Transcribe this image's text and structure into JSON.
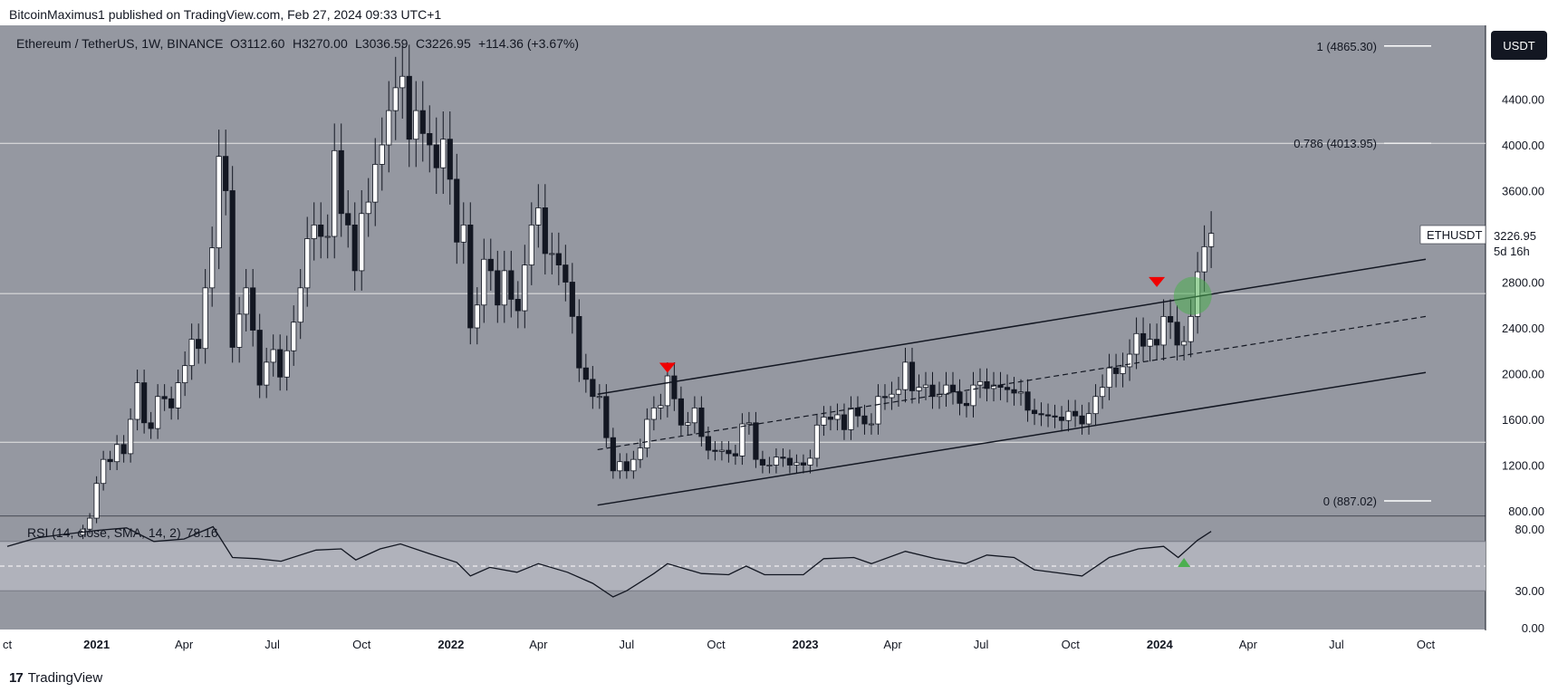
{
  "header": {
    "published": "BitcoinMaximus1 published on TradingView.com, Feb 27, 2024 09:33 UTC+1"
  },
  "footer": {
    "logo": "17",
    "brand": "TradingView"
  },
  "chart_data": {
    "type": "candlestick",
    "title": "Ethereum / TetherUS, 1W, BINANCE",
    "ohlc_legend": {
      "o_label": "O",
      "o": "3112.60",
      "h_label": "H",
      "h": "3270.00",
      "l_label": "L",
      "l": "3036.59",
      "c_label": "C",
      "c": "3226.95",
      "change": "+114.36 (+3.67%)"
    },
    "currency": "USDT",
    "symbol": "ETHUSDT",
    "last_price": 3226.95,
    "last_price_text": "3226.95",
    "countdown": "5d 16h",
    "y_ticks": [
      800,
      1200,
      1600,
      2000,
      2400,
      2800,
      3600,
      4000,
      4400
    ],
    "y_tick_labels": [
      "800.00",
      "1200.00",
      "1600.00",
      "2000.00",
      "2400.00",
      "2800.00",
      "3600.00",
      "4000.00",
      "4400.00"
    ],
    "x_tick_labels": [
      "ct",
      "2021",
      "Apr",
      "Jul",
      "Oct",
      "2022",
      "Apr",
      "Jul",
      "Oct",
      "2023",
      "Apr",
      "Jul",
      "Oct",
      "2024",
      "Apr",
      "Jul",
      "Oct"
    ],
    "x_tick_dates": [
      "2020-10-01",
      "2021-01-01",
      "2021-04-01",
      "2021-07-01",
      "2021-10-01",
      "2022-01-01",
      "2022-04-01",
      "2022-07-01",
      "2022-10-01",
      "2023-01-01",
      "2023-04-01",
      "2023-07-01",
      "2023-10-01",
      "2024-01-01",
      "2024-04-01",
      "2024-07-01",
      "2024-10-01"
    ],
    "horizontal_levels": [
      1400,
      2700
    ],
    "fib_levels": [
      {
        "label": "1 (4865.30)",
        "value": 4865.3
      },
      {
        "label": "0.786 (4013.95)",
        "value": 4013.95
      },
      {
        "label": "0 (887.02)",
        "value": 887.02
      }
    ],
    "channel": {
      "start_date": "2022-06-01",
      "end_date": "2024-10-01",
      "upper": [
        1820,
        3000
      ],
      "mid": [
        1335,
        2500
      ],
      "lower": [
        850,
        2010
      ]
    },
    "bearish_markers": [
      {
        "date": "2022-08-12",
        "value": 2000
      },
      {
        "date": "2023-12-29",
        "value": 2750
      }
    ],
    "breakout_marker": {
      "date": "2024-02-04",
      "value": 2680
    },
    "weekly_closes": [
      {
        "date": "2020-12-18",
        "close": 640
      },
      {
        "date": "2020-12-25",
        "close": 736
      },
      {
        "date": "2021-01-01",
        "close": 1040
      },
      {
        "date": "2021-01-08",
        "close": 1250
      },
      {
        "date": "2021-01-15",
        "close": 1230
      },
      {
        "date": "2021-01-22",
        "close": 1380
      },
      {
        "date": "2021-01-29",
        "close": 1300
      },
      {
        "date": "2021-02-05",
        "close": 1600
      },
      {
        "date": "2021-02-12",
        "close": 1920
      },
      {
        "date": "2021-02-19",
        "close": 1570
      },
      {
        "date": "2021-02-26",
        "close": 1520
      },
      {
        "date": "2021-03-05",
        "close": 1800
      },
      {
        "date": "2021-03-12",
        "close": 1780
      },
      {
        "date": "2021-03-19",
        "close": 1700
      },
      {
        "date": "2021-03-26",
        "close": 1920
      },
      {
        "date": "2021-04-02",
        "close": 2070
      },
      {
        "date": "2021-04-09",
        "close": 2300
      },
      {
        "date": "2021-04-16",
        "close": 2220
      },
      {
        "date": "2021-04-23",
        "close": 2750
      },
      {
        "date": "2021-04-30",
        "close": 3100
      },
      {
        "date": "2021-05-07",
        "close": 3900
      },
      {
        "date": "2021-05-14",
        "close": 3600
      },
      {
        "date": "2021-05-21",
        "close": 2230
      },
      {
        "date": "2021-05-28",
        "close": 2520
      },
      {
        "date": "2021-06-04",
        "close": 2750
      },
      {
        "date": "2021-06-11",
        "close": 2380
      },
      {
        "date": "2021-06-18",
        "close": 1900
      },
      {
        "date": "2021-06-25",
        "close": 2100
      },
      {
        "date": "2021-07-02",
        "close": 2210
      },
      {
        "date": "2021-07-09",
        "close": 1970
      },
      {
        "date": "2021-07-16",
        "close": 2200
      },
      {
        "date": "2021-07-23",
        "close": 2450
      },
      {
        "date": "2021-07-30",
        "close": 2750
      },
      {
        "date": "2021-08-06",
        "close": 3180
      },
      {
        "date": "2021-08-13",
        "close": 3300
      },
      {
        "date": "2021-08-20",
        "close": 3200
      },
      {
        "date": "2021-08-27",
        "close": 3200
      },
      {
        "date": "2021-09-03",
        "close": 3950
      },
      {
        "date": "2021-09-10",
        "close": 3400
      },
      {
        "date": "2021-09-17",
        "close": 3300
      },
      {
        "date": "2021-09-24",
        "close": 2900
      },
      {
        "date": "2021-10-01",
        "close": 3400
      },
      {
        "date": "2021-10-08",
        "close": 3500
      },
      {
        "date": "2021-10-15",
        "close": 3830
      },
      {
        "date": "2021-10-22",
        "close": 4000
      },
      {
        "date": "2021-10-29",
        "close": 4300
      },
      {
        "date": "2021-11-05",
        "close": 4500
      },
      {
        "date": "2021-11-12",
        "close": 4600
      },
      {
        "date": "2021-11-19",
        "close": 4050
      },
      {
        "date": "2021-11-26",
        "close": 4300
      },
      {
        "date": "2021-12-03",
        "close": 4100
      },
      {
        "date": "2021-12-10",
        "close": 4000
      },
      {
        "date": "2021-12-17",
        "close": 3800
      },
      {
        "date": "2021-12-24",
        "close": 4050
      },
      {
        "date": "2021-12-31",
        "close": 3700
      },
      {
        "date": "2022-01-07",
        "close": 3150
      },
      {
        "date": "2022-01-14",
        "close": 3300
      },
      {
        "date": "2022-01-21",
        "close": 2400
      },
      {
        "date": "2022-01-28",
        "close": 2600
      },
      {
        "date": "2022-02-04",
        "close": 3000
      },
      {
        "date": "2022-02-11",
        "close": 2900
      },
      {
        "date": "2022-02-18",
        "close": 2600
      },
      {
        "date": "2022-02-25",
        "close": 2900
      },
      {
        "date": "2022-03-04",
        "close": 2650
      },
      {
        "date": "2022-03-11",
        "close": 2550
      },
      {
        "date": "2022-03-18",
        "close": 2950
      },
      {
        "date": "2022-03-25",
        "close": 3300
      },
      {
        "date": "2022-04-01",
        "close": 3450
      },
      {
        "date": "2022-04-08",
        "close": 3050
      },
      {
        "date": "2022-04-15",
        "close": 3050
      },
      {
        "date": "2022-04-22",
        "close": 2950
      },
      {
        "date": "2022-04-29",
        "close": 2800
      },
      {
        "date": "2022-05-06",
        "close": 2500
      },
      {
        "date": "2022-05-13",
        "close": 2050
      },
      {
        "date": "2022-05-20",
        "close": 1950
      },
      {
        "date": "2022-05-27",
        "close": 1800
      },
      {
        "date": "2022-06-03",
        "close": 1800
      },
      {
        "date": "2022-06-10",
        "close": 1440
      },
      {
        "date": "2022-06-17",
        "close": 1150
      },
      {
        "date": "2022-06-24",
        "close": 1230
      },
      {
        "date": "2022-07-01",
        "close": 1150
      },
      {
        "date": "2022-07-08",
        "close": 1250
      },
      {
        "date": "2022-07-15",
        "close": 1350
      },
      {
        "date": "2022-07-22",
        "close": 1600
      },
      {
        "date": "2022-07-29",
        "close": 1700
      },
      {
        "date": "2022-08-05",
        "close": 1720
      },
      {
        "date": "2022-08-12",
        "close": 1980
      },
      {
        "date": "2022-08-19",
        "close": 1780
      },
      {
        "date": "2022-08-26",
        "close": 1550
      },
      {
        "date": "2022-09-02",
        "close": 1570
      },
      {
        "date": "2022-09-09",
        "close": 1700
      },
      {
        "date": "2022-09-16",
        "close": 1450
      },
      {
        "date": "2022-09-23",
        "close": 1330
      },
      {
        "date": "2022-09-30",
        "close": 1320
      },
      {
        "date": "2022-10-07",
        "close": 1330
      },
      {
        "date": "2022-10-14",
        "close": 1300
      },
      {
        "date": "2022-10-21",
        "close": 1280
      },
      {
        "date": "2022-10-28",
        "close": 1560
      },
      {
        "date": "2022-11-04",
        "close": 1570
      },
      {
        "date": "2022-11-11",
        "close": 1250
      },
      {
        "date": "2022-11-18",
        "close": 1200
      },
      {
        "date": "2022-11-25",
        "close": 1200
      },
      {
        "date": "2022-12-02",
        "close": 1270
      },
      {
        "date": "2022-12-09",
        "close": 1260
      },
      {
        "date": "2022-12-16",
        "close": 1200
      },
      {
        "date": "2022-12-23",
        "close": 1220
      },
      {
        "date": "2022-12-30",
        "close": 1200
      },
      {
        "date": "2023-01-06",
        "close": 1260
      },
      {
        "date": "2023-01-13",
        "close": 1550
      },
      {
        "date": "2023-01-20",
        "close": 1620
      },
      {
        "date": "2023-01-27",
        "close": 1600
      },
      {
        "date": "2023-02-03",
        "close": 1640
      },
      {
        "date": "2023-02-10",
        "close": 1510
      },
      {
        "date": "2023-02-17",
        "close": 1700
      },
      {
        "date": "2023-02-24",
        "close": 1630
      },
      {
        "date": "2023-03-03",
        "close": 1560
      },
      {
        "date": "2023-03-10",
        "close": 1560
      },
      {
        "date": "2023-03-17",
        "close": 1800
      },
      {
        "date": "2023-03-24",
        "close": 1790
      },
      {
        "date": "2023-03-31",
        "close": 1820
      },
      {
        "date": "2023-04-07",
        "close": 1860
      },
      {
        "date": "2023-04-14",
        "close": 2100
      },
      {
        "date": "2023-04-21",
        "close": 1850
      },
      {
        "date": "2023-04-28",
        "close": 1880
      },
      {
        "date": "2023-05-05",
        "close": 1900
      },
      {
        "date": "2023-05-12",
        "close": 1800
      },
      {
        "date": "2023-05-19",
        "close": 1820
      },
      {
        "date": "2023-05-26",
        "close": 1900
      },
      {
        "date": "2023-06-02",
        "close": 1840
      },
      {
        "date": "2023-06-09",
        "close": 1740
      },
      {
        "date": "2023-06-16",
        "close": 1720
      },
      {
        "date": "2023-06-23",
        "close": 1900
      },
      {
        "date": "2023-06-30",
        "close": 1930
      },
      {
        "date": "2023-07-07",
        "close": 1870
      },
      {
        "date": "2023-07-14",
        "close": 1900
      },
      {
        "date": "2023-07-21",
        "close": 1880
      },
      {
        "date": "2023-07-28",
        "close": 1860
      },
      {
        "date": "2023-08-04",
        "close": 1830
      },
      {
        "date": "2023-08-11",
        "close": 1840
      },
      {
        "date": "2023-08-18",
        "close": 1680
      },
      {
        "date": "2023-08-25",
        "close": 1650
      },
      {
        "date": "2023-09-01",
        "close": 1640
      },
      {
        "date": "2023-09-08",
        "close": 1630
      },
      {
        "date": "2023-09-15",
        "close": 1620
      },
      {
        "date": "2023-09-22",
        "close": 1590
      },
      {
        "date": "2023-09-29",
        "close": 1670
      },
      {
        "date": "2023-10-06",
        "close": 1630
      },
      {
        "date": "2023-10-13",
        "close": 1560
      },
      {
        "date": "2023-10-20",
        "close": 1650
      },
      {
        "date": "2023-10-27",
        "close": 1800
      },
      {
        "date": "2023-11-03",
        "close": 1880
      },
      {
        "date": "2023-11-10",
        "close": 2050
      },
      {
        "date": "2023-11-17",
        "close": 2000
      },
      {
        "date": "2023-11-24",
        "close": 2060
      },
      {
        "date": "2023-12-01",
        "close": 2170
      },
      {
        "date": "2023-12-08",
        "close": 2350
      },
      {
        "date": "2023-12-15",
        "close": 2240
      },
      {
        "date": "2023-12-22",
        "close": 2300
      },
      {
        "date": "2023-12-29",
        "close": 2250
      },
      {
        "date": "2024-01-05",
        "close": 2500
      },
      {
        "date": "2024-01-12",
        "close": 2450
      },
      {
        "date": "2024-01-19",
        "close": 2250
      },
      {
        "date": "2024-01-26",
        "close": 2280
      },
      {
        "date": "2024-02-02",
        "close": 2500
      },
      {
        "date": "2024-02-09",
        "close": 2890
      },
      {
        "date": "2024-02-16",
        "close": 3110
      },
      {
        "date": "2024-02-23",
        "close": 3227
      }
    ],
    "rsi": {
      "label": "RSI (14, close, SMA, 14, 2)",
      "value_text": "78.16",
      "value": 78.16,
      "band_upper": 70,
      "band_lower": 30,
      "midline": 50,
      "y_ticks": [
        80,
        30,
        0
      ],
      "y_tick_labels": [
        "80.00",
        "30.00",
        "0.00"
      ],
      "bullish_marker": {
        "date": "2024-01-26",
        "value": 50
      },
      "points": [
        {
          "date": "2020-10-01",
          "value": 66
        },
        {
          "date": "2020-11-01",
          "value": 73
        },
        {
          "date": "2020-12-01",
          "value": 76
        },
        {
          "date": "2021-01-01",
          "value": 79
        },
        {
          "date": "2021-02-01",
          "value": 81
        },
        {
          "date": "2021-03-01",
          "value": 70
        },
        {
          "date": "2021-04-01",
          "value": 72
        },
        {
          "date": "2021-05-01",
          "value": 82
        },
        {
          "date": "2021-05-21",
          "value": 57
        },
        {
          "date": "2021-06-15",
          "value": 56
        },
        {
          "date": "2021-07-10",
          "value": 54
        },
        {
          "date": "2021-08-15",
          "value": 63
        },
        {
          "date": "2021-09-10",
          "value": 64
        },
        {
          "date": "2021-09-25",
          "value": 55
        },
        {
          "date": "2021-10-20",
          "value": 64
        },
        {
          "date": "2021-11-10",
          "value": 68
        },
        {
          "date": "2021-12-10",
          "value": 60
        },
        {
          "date": "2022-01-07",
          "value": 53
        },
        {
          "date": "2022-01-21",
          "value": 42
        },
        {
          "date": "2022-02-10",
          "value": 49
        },
        {
          "date": "2022-03-10",
          "value": 45
        },
        {
          "date": "2022-04-01",
          "value": 52
        },
        {
          "date": "2022-05-01",
          "value": 45
        },
        {
          "date": "2022-05-27",
          "value": 36
        },
        {
          "date": "2022-06-17",
          "value": 25
        },
        {
          "date": "2022-07-01",
          "value": 30
        },
        {
          "date": "2022-07-29",
          "value": 44
        },
        {
          "date": "2022-08-12",
          "value": 52
        },
        {
          "date": "2022-09-16",
          "value": 44
        },
        {
          "date": "2022-10-14",
          "value": 43
        },
        {
          "date": "2022-11-01",
          "value": 50
        },
        {
          "date": "2022-11-20",
          "value": 43
        },
        {
          "date": "2022-12-30",
          "value": 43
        },
        {
          "date": "2023-01-20",
          "value": 56
        },
        {
          "date": "2023-02-20",
          "value": 57
        },
        {
          "date": "2023-03-10",
          "value": 52
        },
        {
          "date": "2023-04-14",
          "value": 62
        },
        {
          "date": "2023-05-15",
          "value": 56
        },
        {
          "date": "2023-06-15",
          "value": 52
        },
        {
          "date": "2023-07-07",
          "value": 59
        },
        {
          "date": "2023-08-04",
          "value": 57
        },
        {
          "date": "2023-08-25",
          "value": 47
        },
        {
          "date": "2023-10-13",
          "value": 42
        },
        {
          "date": "2023-11-10",
          "value": 57
        },
        {
          "date": "2023-12-10",
          "value": 64
        },
        {
          "date": "2024-01-05",
          "value": 66
        },
        {
          "date": "2024-01-20",
          "value": 57
        },
        {
          "date": "2024-02-09",
          "value": 71
        },
        {
          "date": "2024-02-23",
          "value": 78.16
        }
      ]
    },
    "colors": {
      "pane_bg": "#9598a1",
      "up_candle": "#ffffff",
      "down_candle": "#131722",
      "level_line": "#e6e6e6",
      "fib_line": "#ffffff",
      "channel_line": "#131722",
      "marker_red": "#f00000",
      "marker_green": "#4caf50",
      "rsi_band": "#b2b5be",
      "rsi_line": "#131722",
      "currency_bg": "#131722",
      "label_bg": "#ffffff"
    }
  }
}
